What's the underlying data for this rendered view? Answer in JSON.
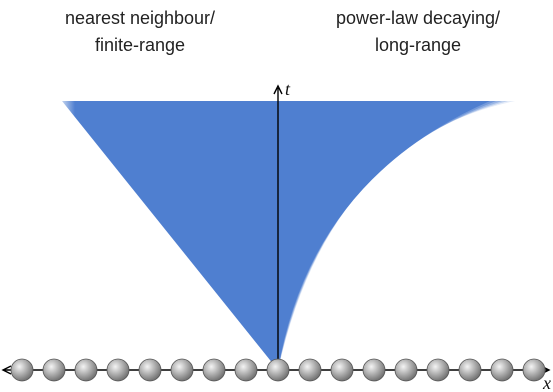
{
  "labels": {
    "left": [
      "nearest neighbour/",
      "finite-range"
    ],
    "right": [
      "power-law decaying/",
      "long-range"
    ]
  },
  "axes": {
    "time": "t",
    "space": "x"
  }
}
